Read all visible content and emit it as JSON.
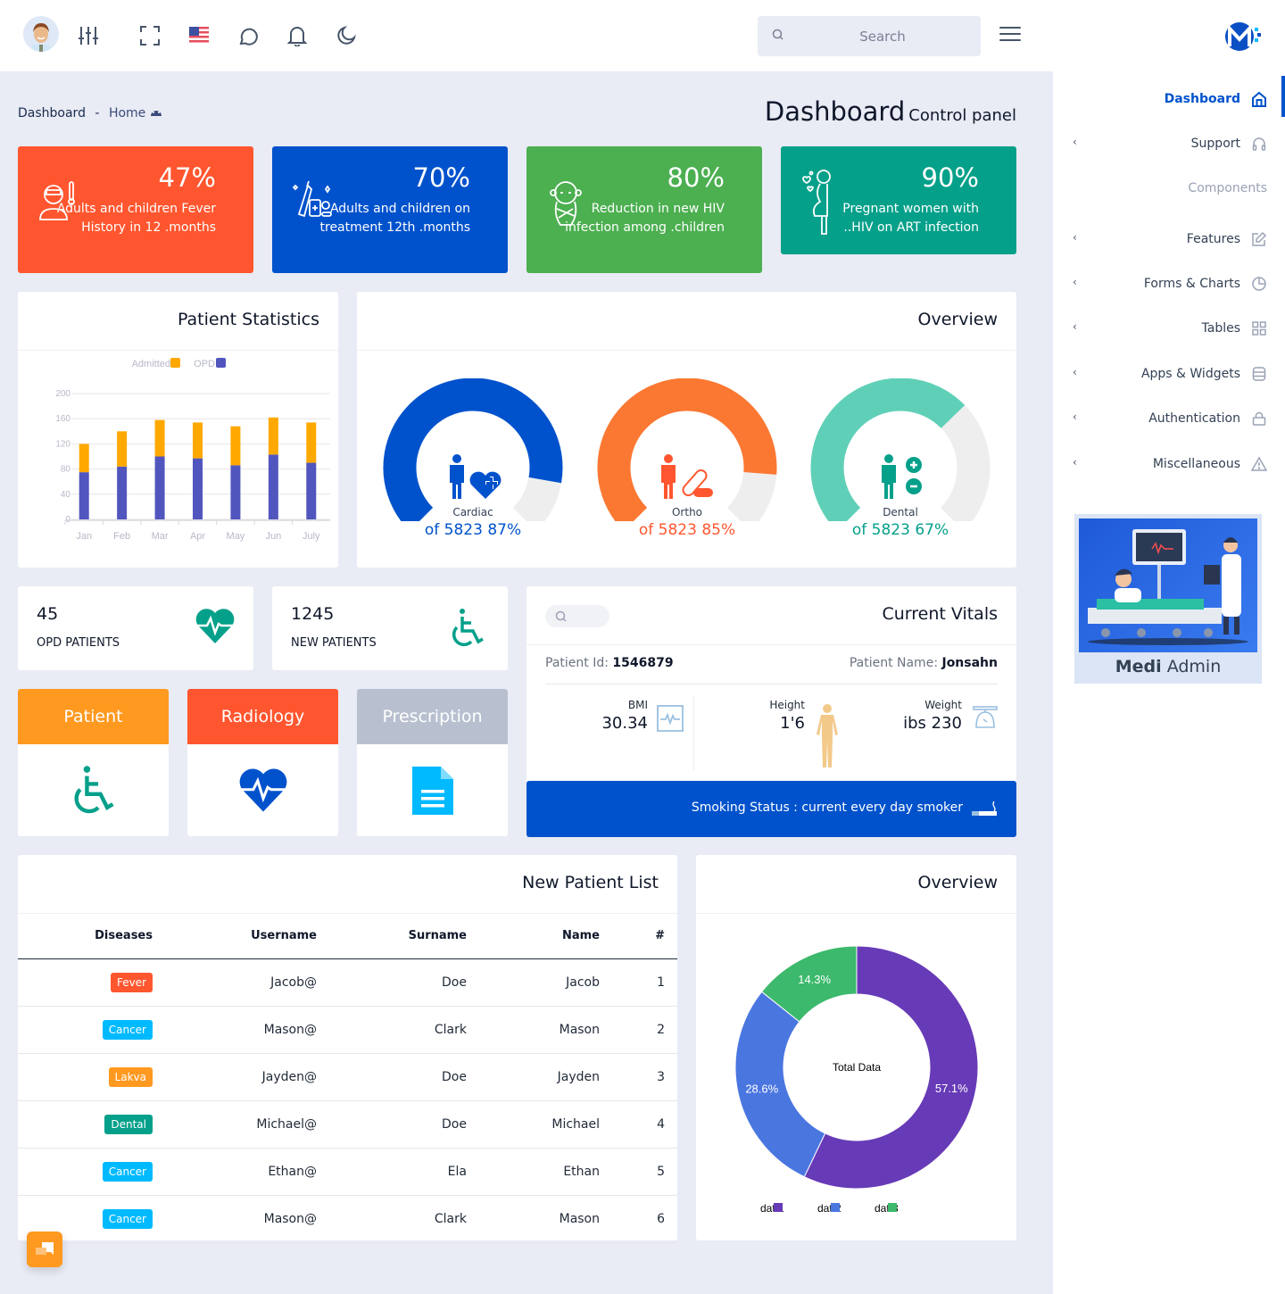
{
  "topbar": {
    "icons": [
      "avatar",
      "sliders-icon",
      "fullscreen-icon",
      "us-flag-icon",
      "chat-icon",
      "bell-icon",
      "moon-icon"
    ],
    "search_placeholder": "Search"
  },
  "breadcrumb": {
    "root": "Dashboard",
    "separator": "-",
    "current": "Home"
  },
  "page": {
    "title": "Dashboard",
    "subtitle": "Control panel"
  },
  "stats": [
    {
      "pct": "47%",
      "desc": "Adults and children Fever History in 12 .months",
      "color": "#ff562f",
      "icon": "sick-person-icon"
    },
    {
      "pct": "70%",
      "desc": "Adults and children on treatment 12th .months",
      "color": "#0052cc",
      "icon": "medicine-icon"
    },
    {
      "pct": "80%",
      "desc": "Reduction in new HIV infection among .children",
      "color": "#4caf50",
      "icon": "baby-icon"
    },
    {
      "pct": "90%",
      "desc": "Pregnant women with ..HIV on ART infection",
      "color": "#05a08a",
      "icon": "pregnant-woman-icon"
    }
  ],
  "patient_statistics": {
    "title": "Patient Statistics",
    "legend": [
      "Admitted",
      "OPD"
    ]
  },
  "overview_gauges": {
    "title": "Overview",
    "items": [
      {
        "label": "Cardiac",
        "value": "of 5823 87%",
        "pct": 87,
        "color": "#0052cc",
        "text_color": "#0052cc"
      },
      {
        "label": "Ortho",
        "value": "of 5823 85%",
        "pct": 85,
        "color": "#fb7832",
        "text_color": "#ff562f"
      },
      {
        "label": "Dental",
        "value": "of 5823 67%",
        "pct": 67,
        "color": "#5fd0b7",
        "text_color": "#05a08a"
      }
    ]
  },
  "mini_stats": [
    {
      "num": "45",
      "label": "OPD PATIENTS"
    },
    {
      "num": "1245",
      "label": "NEW PATIENTS"
    }
  ],
  "tiles": [
    {
      "label": "Patient",
      "color": "#ff9920"
    },
    {
      "label": "Radiology",
      "color": "#ff562f"
    },
    {
      "label": "Prescription",
      "color": "#b8c0d0"
    }
  ],
  "vitals": {
    "title": "Current Vitals",
    "patient_id_label": "Patient Id:",
    "patient_id": "1546879",
    "patient_name_label": "Patient Name:",
    "patient_name": "Jonsahn",
    "bmi_label": "BMI",
    "bmi": "30.34",
    "height_label": "Height",
    "height": "1'6",
    "weight_label": "Weight",
    "weight": "ibs 230",
    "smoking": "Smoking Status : current every day smoker"
  },
  "patient_list": {
    "title": "New Patient List",
    "columns": [
      "Diseases",
      "Username",
      "Surname",
      "Name",
      "#"
    ],
    "rows": [
      {
        "disease": "Fever",
        "disease_color": "#ff562f",
        "username": "Jacob@",
        "surname": "Doe",
        "name": "Jacob",
        "num": "1"
      },
      {
        "disease": "Cancer",
        "disease_color": "#00baff",
        "username": "Mason@",
        "surname": "Clark",
        "name": "Mason",
        "num": "2"
      },
      {
        "disease": "Lakva",
        "disease_color": "#ff9920",
        "username": "Jayden@",
        "surname": "Doe",
        "name": "Jayden",
        "num": "3"
      },
      {
        "disease": "Dental",
        "disease_color": "#05a08a",
        "username": "Michael@",
        "surname": "Doe",
        "name": "Michael",
        "num": "4"
      },
      {
        "disease": "Cancer",
        "disease_color": "#00baff",
        "username": "Ethan@",
        "surname": "Ela",
        "name": "Ethan",
        "num": "5"
      },
      {
        "disease": "Cancer",
        "disease_color": "#00baff",
        "username": "Mason@",
        "surname": "Clark",
        "name": "Mason",
        "num": "6"
      }
    ]
  },
  "overview_donut": {
    "title": "Overview",
    "center_label": "Total Data"
  },
  "sidebar": {
    "items": [
      {
        "label": "Dashboard",
        "icon": "home-icon",
        "active": true,
        "chevron": false
      },
      {
        "label": "Support",
        "icon": "headphones-icon",
        "chevron": true
      },
      {
        "label": "Features",
        "icon": "edit-icon",
        "chevron": true
      },
      {
        "label": "Forms & Charts",
        "icon": "pie-chart-icon",
        "chevron": true
      },
      {
        "label": "Tables",
        "icon": "grid-icon",
        "chevron": true
      },
      {
        "label": "Apps & Widgets",
        "icon": "database-icon",
        "chevron": true
      },
      {
        "label": "Authentication",
        "icon": "lock-icon",
        "chevron": true
      },
      {
        "label": "Miscellaneous",
        "icon": "warning-icon",
        "chevron": true
      }
    ],
    "section_label": "Components",
    "promo": {
      "bold": "Medi",
      "rest": " Admin"
    }
  },
  "chart_data": [
    {
      "type": "bar",
      "stacked": true,
      "title": "Patient Statistics",
      "categories": [
        "Jan",
        "Feb",
        "Mar",
        "Apr",
        "May",
        "Jun",
        "July"
      ],
      "series": [
        {
          "name": "OPD",
          "color": "#5156be",
          "values": [
            75,
            84,
            100,
            97,
            86,
            103,
            90
          ]
        },
        {
          "name": "Admitted",
          "color": "#ffa800",
          "values": [
            45,
            56,
            58,
            57,
            62,
            59,
            64
          ]
        }
      ],
      "yticks": [
        0,
        40,
        80,
        120,
        160,
        200
      ],
      "ylim": [
        0,
        200
      ],
      "grid": true,
      "legend_position": "top"
    },
    {
      "type": "pie",
      "donut": true,
      "title": "Overview",
      "center_label": "Total Data",
      "categories": [
        "data1",
        "data2",
        "data3"
      ],
      "values": [
        57.1,
        28.6,
        14.3
      ],
      "colors": [
        "#673ab7",
        "#4a76e0",
        "#3cb96c"
      ],
      "legend_labels_visible": [
        "dat 1",
        "dat 2",
        "dat 3"
      ],
      "legend_position": "bottom"
    }
  ]
}
